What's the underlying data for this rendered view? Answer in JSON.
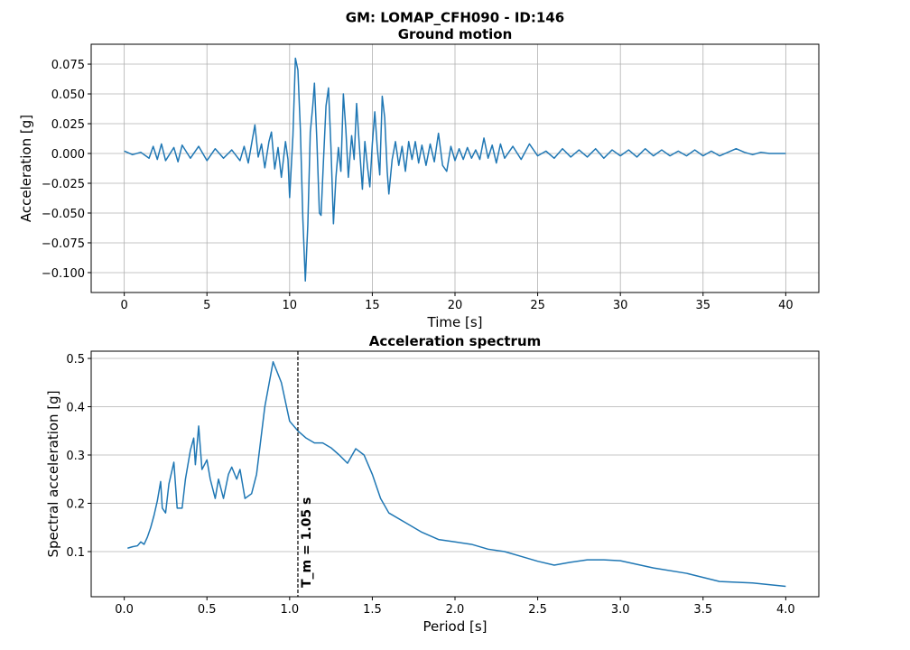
{
  "title": "GM: LOMAP_CFH090 - ID:146",
  "chart_data": [
    {
      "type": "line",
      "title": "Ground motion",
      "x_label": "Time [s]",
      "y_label": "Acceleration [g]",
      "xlim": [
        -2,
        42
      ],
      "ylim": [
        -0.1167,
        0.0917
      ],
      "grid": true,
      "xticks": [
        0,
        5,
        10,
        15,
        20,
        25,
        30,
        35,
        40
      ],
      "yticks": [
        {
          "value": -0.1,
          "label": "−0.100"
        },
        {
          "value": -0.075,
          "label": "−0.075"
        },
        {
          "value": -0.05,
          "label": "−0.050"
        },
        {
          "value": -0.025,
          "label": "−0.025"
        },
        {
          "value": 0,
          "label": "0.000"
        },
        0.025,
        {
          "value": 0.05,
          "label": "0.050"
        },
        0.075
      ],
      "series": [
        {
          "color": "#1f77b4",
          "x": [
            0,
            0.5,
            1,
            1.5,
            1.75,
            2,
            2.25,
            2.5,
            3,
            3.25,
            3.5,
            4,
            4.5,
            5,
            5.5,
            6,
            6.5,
            7,
            7.25,
            7.5,
            7.75,
            7.9,
            8.1,
            8.3,
            8.5,
            8.75,
            8.9,
            9.1,
            9.3,
            9.5,
            9.75,
            9.9,
            10,
            10.2,
            10.35,
            10.5,
            10.65,
            10.8,
            10.95,
            11.1,
            11.25,
            11.4,
            11.5,
            11.65,
            11.8,
            11.9,
            12.05,
            12.2,
            12.35,
            12.5,
            12.65,
            12.8,
            12.95,
            13.1,
            13.25,
            13.4,
            13.55,
            13.75,
            13.9,
            14.05,
            14.2,
            14.4,
            14.55,
            14.7,
            14.85,
            15,
            15.15,
            15.3,
            15.45,
            15.6,
            15.75,
            15.9,
            16,
            16.2,
            16.4,
            16.6,
            16.8,
            17,
            17.2,
            17.4,
            17.6,
            17.8,
            18,
            18.25,
            18.5,
            18.75,
            19,
            19.25,
            19.5,
            19.75,
            20,
            20.25,
            20.5,
            20.75,
            21,
            21.25,
            21.5,
            21.75,
            22,
            22.25,
            22.5,
            22.75,
            23,
            23.5,
            24,
            24.5,
            25,
            25.5,
            26,
            26.5,
            27,
            27.5,
            28,
            28.5,
            29,
            29.5,
            30,
            30.5,
            31,
            31.5,
            32,
            32.5,
            33,
            33.5,
            34,
            34.5,
            35,
            35.5,
            36,
            36.5,
            37,
            37.5,
            38,
            38.5,
            39,
            40
          ],
          "values": [
            0.002,
            -0.001,
            0.001,
            -0.004,
            0.006,
            -0.005,
            0.008,
            -0.006,
            0.005,
            -0.007,
            0.007,
            -0.004,
            0.006,
            -0.006,
            0.004,
            -0.004,
            0.003,
            -0.006,
            0.006,
            -0.008,
            0.012,
            0.024,
            -0.003,
            0.008,
            -0.012,
            0.01,
            0.018,
            -0.013,
            0.005,
            -0.02,
            0.01,
            -0.005,
            -0.037,
            0.015,
            0.08,
            0.07,
            0.02,
            -0.055,
            -0.107,
            -0.06,
            0.018,
            0.04,
            0.059,
            0.01,
            -0.05,
            -0.052,
            -0.005,
            0.04,
            0.055,
            0.005,
            -0.059,
            -0.02,
            0.005,
            -0.015,
            0.05,
            0.02,
            -0.02,
            0.015,
            -0.005,
            0.042,
            0.01,
            -0.03,
            0.01,
            -0.01,
            -0.028,
            0.008,
            0.035,
            0.005,
            -0.018,
            0.048,
            0.03,
            -0.015,
            -0.034,
            -0.005,
            0.01,
            -0.01,
            0.006,
            -0.015,
            0.01,
            -0.005,
            0.01,
            -0.008,
            0.007,
            -0.01,
            0.008,
            -0.007,
            0.017,
            -0.01,
            -0.015,
            0.006,
            -0.006,
            0.004,
            -0.005,
            0.005,
            -0.004,
            0.003,
            -0.005,
            0.013,
            -0.004,
            0.007,
            -0.008,
            0.008,
            -0.004,
            0.006,
            -0.005,
            0.008,
            -0.002,
            0.002,
            -0.004,
            0.004,
            -0.003,
            0.003,
            -0.003,
            0.004,
            -0.004,
            0.003,
            -0.002,
            0.003,
            -0.003,
            0.004,
            -0.002,
            0.003,
            -0.002,
            0.002,
            -0.002,
            0.003,
            -0.002,
            0.002,
            -0.002,
            0.001,
            0.004,
            0.001,
            -0.001,
            0.001,
            0,
            0
          ]
        }
      ]
    },
    {
      "type": "line",
      "title": "Acceleration spectrum",
      "x_label": "Period [s]",
      "y_label": "Spectral acceleration [g]",
      "xlim": [
        -0.2,
        4.2
      ],
      "ylim": [
        0.0065,
        0.515
      ],
      "grid": true,
      "grid_axis": "y",
      "xticks": [
        {
          "value": 0,
          "label": "0.0"
        },
        0.5,
        {
          "value": 1,
          "label": "1.0"
        },
        1.5,
        {
          "value": 2,
          "label": "2.0"
        },
        2.5,
        {
          "value": 3,
          "label": "3.0"
        },
        3.5,
        {
          "value": 4,
          "label": "4.0"
        }
      ],
      "yticks": [
        0.1,
        0.2,
        0.3,
        0.4,
        0.5
      ],
      "vline": {
        "x": 1.05,
        "label": "T_m = 1.05 s",
        "color": "#000000"
      },
      "series": [
        {
          "color": "#1f77b4",
          "x": [
            0.02,
            0.05,
            0.08,
            0.1,
            0.12,
            0.14,
            0.16,
            0.18,
            0.2,
            0.22,
            0.23,
            0.25,
            0.27,
            0.3,
            0.32,
            0.35,
            0.37,
            0.4,
            0.42,
            0.43,
            0.45,
            0.47,
            0.5,
            0.52,
            0.55,
            0.57,
            0.6,
            0.63,
            0.65,
            0.68,
            0.7,
            0.73,
            0.77,
            0.8,
            0.85,
            0.9,
            0.95,
            1,
            1.05,
            1.1,
            1.15,
            1.2,
            1.25,
            1.3,
            1.35,
            1.4,
            1.45,
            1.5,
            1.55,
            1.6,
            1.7,
            1.8,
            1.9,
            2,
            2.1,
            2.2,
            2.3,
            2.4,
            2.5,
            2.6,
            2.7,
            2.8,
            2.9,
            3,
            3.2,
            3.4,
            3.6,
            3.8,
            4
          ],
          "values": [
            0.107,
            0.11,
            0.112,
            0.12,
            0.115,
            0.13,
            0.15,
            0.175,
            0.205,
            0.245,
            0.19,
            0.18,
            0.24,
            0.285,
            0.19,
            0.19,
            0.25,
            0.31,
            0.335,
            0.28,
            0.36,
            0.27,
            0.29,
            0.25,
            0.21,
            0.25,
            0.21,
            0.26,
            0.275,
            0.25,
            0.27,
            0.21,
            0.22,
            0.26,
            0.4,
            0.493,
            0.45,
            0.37,
            0.35,
            0.335,
            0.325,
            0.325,
            0.315,
            0.3,
            0.283,
            0.313,
            0.3,
            0.26,
            0.21,
            0.18,
            0.16,
            0.14,
            0.125,
            0.12,
            0.115,
            0.105,
            0.1,
            0.09,
            0.08,
            0.072,
            0.078,
            0.083,
            0.083,
            0.081,
            0.066,
            0.055,
            0.038,
            0.035,
            0.028
          ]
        }
      ]
    }
  ]
}
